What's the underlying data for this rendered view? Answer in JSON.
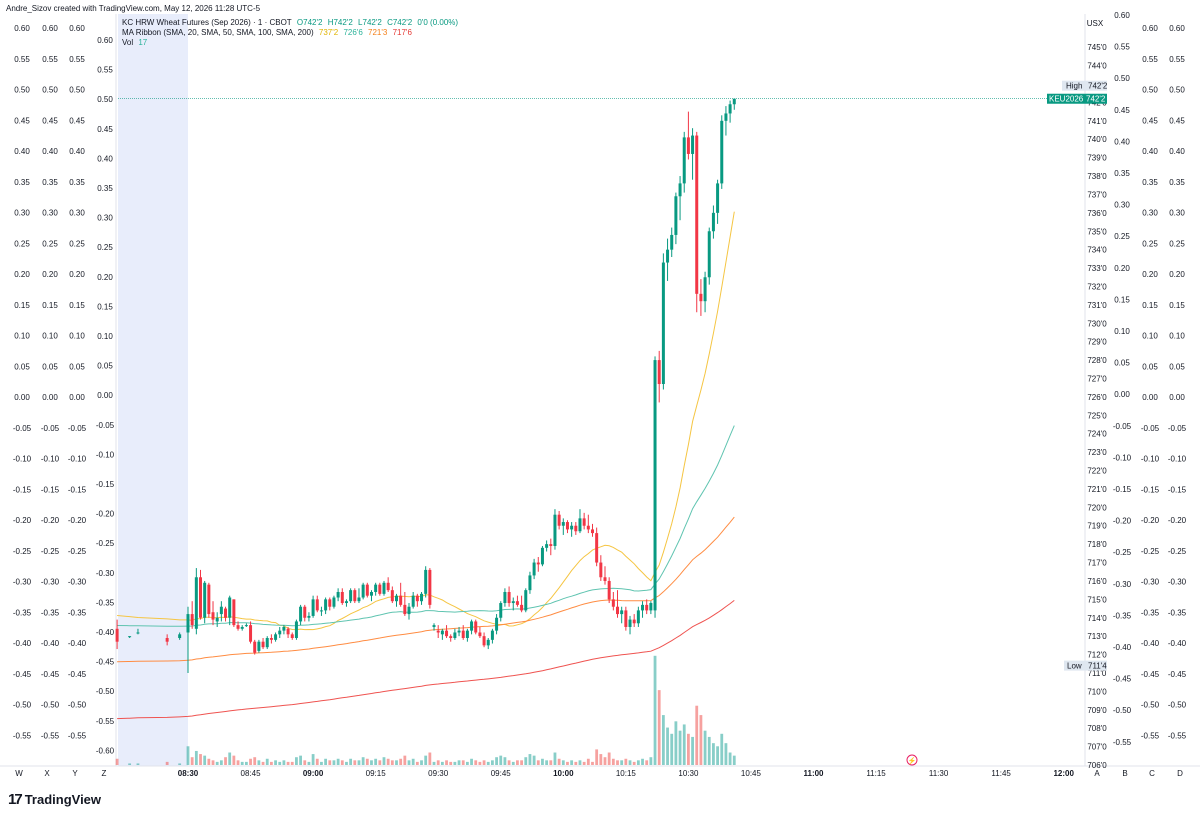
{
  "credit": "Andre_Sizov created with TradingView.com, May 12, 2026 11:28 UTC-5",
  "brand": "TradingView",
  "legend": {
    "symbol": "KC HRW Wheat Futures (Sep 2026) · 1 · CBOT",
    "O": "O742'2",
    "H": "H742'2",
    "L": "L742'2",
    "C": "C742'2",
    "chg": "0'0 (0.00%)",
    "ma_label": "MA Ribbon (SMA, 20, SMA, 50, SMA, 100, SMA, 200)",
    "ma20": "737'2",
    "ma50": "726'6",
    "ma100": "721'3",
    "ma200": "717'6",
    "vol_label": "Vol",
    "vol_value": "17"
  },
  "chart_data": {
    "type": "candlestick",
    "currency": "USX",
    "price_ticks": [
      "745'0",
      "744'0",
      "743'0",
      "742'0",
      "741'0",
      "740'0",
      "739'0",
      "738'0",
      "737'0",
      "736'0",
      "735'0",
      "734'0",
      "733'0",
      "732'0",
      "731'0",
      "730'0",
      "729'0",
      "728'0",
      "727'0",
      "726'0",
      "725'0",
      "724'0",
      "723'0",
      "722'0",
      "721'0",
      "720'0",
      "719'0",
      "718'0",
      "717'0",
      "716'0",
      "715'0",
      "714'0",
      "713'0",
      "712'0",
      "711'0",
      "710'0",
      "709'0",
      "708'0",
      "707'0",
      "706'0"
    ],
    "price_range": [
      706,
      745.5
    ],
    "time_ticks": [
      {
        "t": "08:30",
        "m": 0,
        "bold": true
      },
      {
        "t": "08:45",
        "m": 15
      },
      {
        "t": "09:00",
        "m": 30,
        "bold": true
      },
      {
        "t": "09:15",
        "m": 45
      },
      {
        "t": "09:30",
        "m": 60
      },
      {
        "t": "09:45",
        "m": 75
      },
      {
        "t": "10:00",
        "m": 90,
        "bold": true
      },
      {
        "t": "10:15",
        "m": 105
      },
      {
        "t": "10:30",
        "m": 120
      },
      {
        "t": "10:45",
        "m": 135
      },
      {
        "t": "11:00",
        "m": 150,
        "bold": true
      },
      {
        "t": "11:15",
        "m": 165
      },
      {
        "t": "11:30",
        "m": 180
      },
      {
        "t": "11:45",
        "m": 195
      },
      {
        "t": "12:00",
        "m": 210,
        "bold": true
      }
    ],
    "osc_ticks": [
      "0.60",
      "0.55",
      "0.50",
      "0.45",
      "0.40",
      "0.35",
      "0.30",
      "0.25",
      "0.20",
      "0.15",
      "0.10",
      "0.05",
      "0.00",
      "-0.05",
      "-0.10",
      "-0.15",
      "-0.20",
      "-0.25",
      "-0.30",
      "-0.35",
      "-0.40",
      "-0.45",
      "-0.50",
      "-0.55"
    ],
    "inner_osc_ticks": [
      "0.60",
      "0.55",
      "0.50",
      "0.45",
      "0.40",
      "0.35",
      "0.30",
      "0.25",
      "0.20",
      "0.15",
      "0.10",
      "0.05",
      "0.00",
      "-0.05",
      "-0.10",
      "-0.15",
      "-0.20",
      "-0.25",
      "-0.30",
      "-0.35",
      "-0.40",
      "-0.45",
      "-0.50",
      "-0.55",
      "-0.60"
    ],
    "right_osc_ticks": [
      "0.60",
      "0.55",
      "0.50",
      "0.45",
      "0.40",
      "0.35",
      "0.30",
      "0.25",
      "0.20",
      "0.15",
      "0.10",
      "0.05",
      "0.00",
      "-0.05",
      "-0.10",
      "-0.15",
      "-0.20",
      "-0.25",
      "-0.30",
      "-0.35",
      "-0.40",
      "-0.45",
      "-0.50",
      "-0.55"
    ],
    "axis_letters": {
      "left": [
        "W",
        "X",
        "Y",
        "Z"
      ],
      "right": [
        "A",
        "B",
        "C",
        "D"
      ]
    },
    "high_label": "High",
    "high_value": "742'2",
    "low_label": "Low",
    "low_value": "711'4",
    "symbol_tag": "KEU2026",
    "symbol_value": "742'2",
    "premarket_shade": "pre-session highlight before 08:30",
    "candles": [
      [
        -17,
        713.4,
        713.9,
        712.3,
        712.7,
        4
      ],
      [
        -14,
        713.0,
        713.0,
        712.9,
        713.0,
        1
      ],
      [
        -12,
        713.2,
        713.4,
        713.1,
        713.2,
        1
      ],
      [
        -5,
        712.9,
        713.1,
        712.5,
        712.7,
        2
      ],
      [
        -2,
        712.9,
        713.2,
        712.8,
        713.1,
        1
      ],
      [
        0,
        713.2,
        714.6,
        711.0,
        714.2,
        12
      ],
      [
        1,
        714.2,
        714.9,
        713.4,
        713.6,
        5
      ],
      [
        2,
        713.4,
        716.7,
        713.1,
        716.2,
        9
      ],
      [
        3,
        716.2,
        716.6,
        713.9,
        714.0,
        7
      ],
      [
        4,
        714.0,
        716.0,
        713.7,
        715.9,
        6
      ],
      [
        5,
        715.8,
        715.9,
        714.0,
        714.2,
        4
      ],
      [
        6,
        714.3,
        714.9,
        713.6,
        713.9,
        3
      ],
      [
        7,
        713.8,
        714.3,
        713.5,
        714.0,
        2
      ],
      [
        8,
        714.2,
        714.9,
        713.8,
        714.6,
        3
      ],
      [
        9,
        714.5,
        714.6,
        713.8,
        714.0,
        5
      ],
      [
        10,
        714.0,
        715.2,
        713.6,
        715.1,
        8
      ],
      [
        11,
        715.0,
        715.0,
        713.5,
        713.6,
        6
      ],
      [
        12,
        713.6,
        713.8,
        713.3,
        713.4,
        3
      ],
      [
        13,
        713.4,
        713.6,
        713.3,
        713.5,
        2
      ],
      [
        14,
        713.6,
        713.7,
        713.5,
        713.6,
        2
      ],
      [
        15,
        713.6,
        713.8,
        712.6,
        712.7,
        4
      ],
      [
        16,
        712.7,
        712.8,
        712.0,
        712.1,
        5
      ],
      [
        17,
        712.2,
        712.8,
        712.1,
        712.7,
        3
      ],
      [
        18,
        712.7,
        712.9,
        712.3,
        712.4,
        2
      ],
      [
        19,
        712.4,
        713.0,
        712.3,
        712.9,
        4
      ],
      [
        20,
        712.9,
        713.1,
        712.6,
        712.8,
        2
      ],
      [
        21,
        712.8,
        713.2,
        712.7,
        713.1,
        3
      ],
      [
        22,
        713.1,
        713.5,
        712.9,
        713.3,
        2
      ],
      [
        23,
        713.3,
        713.6,
        713.1,
        713.5,
        3
      ],
      [
        24,
        713.4,
        713.5,
        712.9,
        713.1,
        2
      ],
      [
        25,
        713.1,
        713.2,
        712.8,
        712.9,
        2
      ],
      [
        26,
        712.9,
        713.9,
        712.8,
        713.8,
        5
      ],
      [
        27,
        713.8,
        714.7,
        713.6,
        714.6,
        6
      ],
      [
        28,
        714.6,
        714.7,
        713.8,
        714.0,
        3
      ],
      [
        29,
        714.0,
        714.3,
        713.8,
        714.1,
        2
      ],
      [
        30,
        714.1,
        715.2,
        714.0,
        715.0,
        7
      ],
      [
        31,
        715.0,
        715.2,
        714.3,
        714.4,
        4
      ],
      [
        32,
        714.4,
        714.6,
        714.1,
        714.4,
        2
      ],
      [
        33,
        714.4,
        715.1,
        714.2,
        715.0,
        4
      ],
      [
        34,
        715.0,
        715.1,
        714.4,
        714.6,
        3
      ],
      [
        35,
        714.6,
        715.2,
        714.5,
        715.1,
        3
      ],
      [
        36,
        715.1,
        715.6,
        714.9,
        715.4,
        4
      ],
      [
        37,
        715.4,
        715.6,
        714.7,
        714.8,
        3
      ],
      [
        38,
        714.8,
        715.0,
        714.6,
        714.9,
        2
      ],
      [
        39,
        714.9,
        715.6,
        714.8,
        715.5,
        4
      ],
      [
        40,
        715.5,
        715.6,
        714.8,
        714.9,
        3
      ],
      [
        41,
        714.9,
        715.6,
        714.8,
        715.1,
        3
      ],
      [
        42,
        715.1,
        715.9,
        715.0,
        715.8,
        5
      ],
      [
        43,
        715.8,
        715.9,
        715.1,
        715.2,
        4
      ],
      [
        44,
        715.2,
        715.5,
        714.9,
        715.4,
        3
      ],
      [
        45,
        715.4,
        715.9,
        715.2,
        715.8,
        4
      ],
      [
        46,
        715.8,
        715.9,
        715.2,
        715.3,
        3
      ],
      [
        47,
        715.3,
        716.0,
        715.2,
        715.9,
        5
      ],
      [
        48,
        715.9,
        716.2,
        715.4,
        715.5,
        4
      ],
      [
        49,
        715.5,
        715.7,
        714.8,
        714.9,
        3
      ],
      [
        50,
        714.9,
        715.3,
        714.6,
        715.2,
        3
      ],
      [
        51,
        715.2,
        715.9,
        714.6,
        714.7,
        4
      ],
      [
        52,
        714.7,
        715.4,
        714.1,
        714.2,
        6
      ],
      [
        53,
        714.2,
        714.8,
        713.9,
        714.6,
        3
      ],
      [
        54,
        714.6,
        715.4,
        714.5,
        715.2,
        4
      ],
      [
        55,
        715.2,
        715.3,
        714.6,
        714.9,
        2
      ],
      [
        56,
        714.9,
        715.4,
        714.7,
        715.3,
        3
      ],
      [
        57,
        715.3,
        716.8,
        715.1,
        716.6,
        6
      ],
      [
        58,
        716.6,
        716.7,
        714.5,
        714.7,
        8
      ],
      [
        59,
        713.5,
        713.7,
        713.3,
        713.6,
        2
      ],
      [
        60,
        713.3,
        713.6,
        712.9,
        713.2,
        3
      ],
      [
        61,
        713.1,
        713.4,
        712.8,
        713.3,
        2
      ],
      [
        62,
        713.3,
        713.6,
        712.9,
        713.0,
        3
      ],
      [
        63,
        713.0,
        713.1,
        712.7,
        712.9,
        2
      ],
      [
        64,
        712.9,
        713.4,
        712.8,
        713.2,
        2
      ],
      [
        65,
        713.2,
        713.5,
        713.0,
        713.3,
        3
      ],
      [
        66,
        713.3,
        713.6,
        712.8,
        712.9,
        3
      ],
      [
        67,
        712.9,
        713.4,
        712.7,
        713.3,
        2
      ],
      [
        68,
        713.3,
        713.9,
        713.1,
        713.8,
        4
      ],
      [
        69,
        713.8,
        713.9,
        713.1,
        713.2,
        3
      ],
      [
        70,
        713.2,
        713.5,
        712.9,
        713.0,
        2
      ],
      [
        71,
        713.0,
        713.2,
        712.4,
        712.5,
        3
      ],
      [
        72,
        712.5,
        712.9,
        712.3,
        712.8,
        2
      ],
      [
        73,
        712.8,
        713.4,
        712.6,
        713.3,
        3
      ],
      [
        74,
        713.3,
        714.2,
        713.1,
        714.0,
        5
      ],
      [
        75,
        714.0,
        714.9,
        713.8,
        714.8,
        6
      ],
      [
        76,
        714.8,
        715.6,
        714.6,
        715.4,
        5
      ],
      [
        77,
        715.4,
        715.7,
        714.6,
        714.8,
        3
      ],
      [
        78,
        714.8,
        715.1,
        714.4,
        714.9,
        2
      ],
      [
        79,
        714.9,
        715.2,
        714.6,
        714.7,
        3
      ],
      [
        80,
        714.7,
        715.2,
        714.3,
        714.4,
        3
      ],
      [
        81,
        714.4,
        715.6,
        714.3,
        715.5,
        5
      ],
      [
        82,
        715.5,
        716.5,
        715.3,
        716.3,
        7
      ],
      [
        83,
        716.3,
        717.2,
        716.1,
        717.0,
        6
      ],
      [
        84,
        717.0,
        717.3,
        716.5,
        716.9,
        3
      ],
      [
        85,
        716.9,
        717.9,
        716.8,
        717.8,
        4
      ],
      [
        86,
        717.8,
        718.2,
        717.6,
        718.0,
        3
      ],
      [
        87,
        718.0,
        718.3,
        717.4,
        717.9,
        3
      ],
      [
        88,
        717.9,
        719.9,
        717.7,
        719.6,
        8
      ],
      [
        89,
        719.6,
        719.8,
        718.8,
        719.0,
        4
      ],
      [
        90,
        719.0,
        719.4,
        718.5,
        719.2,
        3
      ],
      [
        91,
        719.2,
        719.3,
        718.6,
        718.8,
        2
      ],
      [
        92,
        718.8,
        719.2,
        718.4,
        719.0,
        3
      ],
      [
        93,
        719.0,
        719.2,
        718.5,
        718.7,
        2
      ],
      [
        94,
        718.7,
        719.9,
        718.6,
        719.4,
        3
      ],
      [
        95,
        719.4,
        719.7,
        718.8,
        719.0,
        2
      ],
      [
        96,
        719.0,
        719.6,
        718.6,
        718.8,
        4
      ],
      [
        97,
        718.8,
        719.1,
        718.4,
        718.6,
        2
      ],
      [
        98,
        718.6,
        718.9,
        716.8,
        717.0,
        10
      ],
      [
        99,
        717.0,
        717.4,
        716.0,
        716.2,
        7
      ],
      [
        100,
        716.2,
        716.8,
        715.8,
        716.0,
        5
      ],
      [
        101,
        716.0,
        716.2,
        714.8,
        715.0,
        8
      ],
      [
        102,
        715.0,
        715.4,
        714.4,
        714.6,
        4
      ],
      [
        103,
        714.6,
        715.5,
        714.0,
        714.2,
        3
      ],
      [
        104,
        714.2,
        714.6,
        713.7,
        714.4,
        3
      ],
      [
        105,
        714.4,
        714.6,
        713.3,
        713.5,
        4
      ],
      [
        106,
        713.5,
        714.1,
        713.1,
        713.9,
        3
      ],
      [
        107,
        713.9,
        714.2,
        713.5,
        713.7,
        2
      ],
      [
        108,
        713.7,
        714.6,
        713.5,
        714.4,
        3
      ],
      [
        109,
        714.4,
        714.9,
        714.0,
        714.7,
        4
      ],
      [
        110,
        714.7,
        715.0,
        714.2,
        714.4,
        3
      ],
      [
        111,
        714.4,
        714.9,
        714.2,
        714.8,
        5
      ],
      [
        112,
        714.4,
        728.2,
        714.0,
        728.0,
        70
      ],
      [
        113,
        728.0,
        728.5,
        725.7,
        726.7,
        48
      ],
      [
        114,
        726.7,
        733.8,
        726.4,
        733.3,
        32
      ],
      [
        115,
        733.3,
        734.6,
        732.3,
        734.0,
        24
      ],
      [
        116,
        734.0,
        735.2,
        733.6,
        734.8,
        20
      ],
      [
        117,
        734.8,
        737.1,
        734.3,
        736.9,
        28
      ],
      [
        118,
        736.9,
        738.0,
        735.6,
        737.6,
        22
      ],
      [
        119,
        737.6,
        740.4,
        737.1,
        740.1,
        26
      ],
      [
        120,
        740.1,
        741.5,
        738.9,
        739.2,
        20
      ],
      [
        121,
        739.2,
        740.6,
        737.8,
        740.2,
        18
      ],
      [
        122,
        740.2,
        740.4,
        730.6,
        731.6,
        38
      ],
      [
        123,
        731.6,
        732.4,
        730.4,
        731.2,
        32
      ],
      [
        124,
        731.2,
        732.8,
        730.6,
        732.5,
        22
      ],
      [
        125,
        732.5,
        735.2,
        732.1,
        735.0,
        18
      ],
      [
        126,
        735.0,
        736.4,
        734.6,
        736.0,
        14
      ],
      [
        127,
        736.0,
        737.8,
        735.4,
        737.6,
        12
      ],
      [
        128,
        737.6,
        741.3,
        737.3,
        741.0,
        20
      ],
      [
        129,
        741.0,
        741.8,
        740.2,
        741.4,
        14
      ],
      [
        130,
        741.4,
        742.1,
        740.9,
        741.9,
        8
      ],
      [
        131,
        741.9,
        742.2,
        741.6,
        742.2,
        6
      ]
    ]
  }
}
